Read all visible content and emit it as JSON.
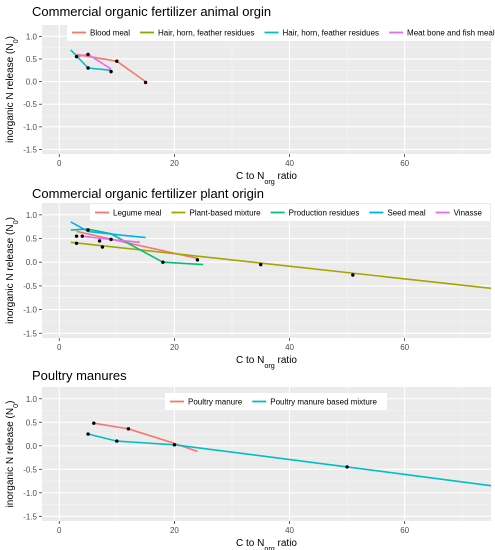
{
  "chart_data": [
    {
      "type": "line",
      "title": "Commercial organic fertilizer animal orgin",
      "xlabel": "C to N_org ratio",
      "ylabel": "inorganic N release (N_0)",
      "xlim": [
        -3,
        75
      ],
      "ylim": [
        -1.6,
        1.25
      ],
      "xticks": [
        0,
        20,
        40,
        60
      ],
      "yticks": [
        -1.5,
        -1.0,
        -0.5,
        0.0,
        0.5,
        1.0
      ],
      "grid": true,
      "legend_position": "top",
      "series": [
        {
          "name": "Blood meal",
          "color": "#F8766D",
          "x": [
            3,
            10,
            15
          ],
          "y": [
            0.6,
            0.45,
            0.0
          ]
        },
        {
          "name": "Hair, horn, feather residues",
          "color": "#7CAE00",
          "x": [],
          "y": []
        },
        {
          "name": "Hair, horn, feather residues",
          "color": "#00BFC4",
          "x": [
            2,
            5,
            9
          ],
          "y": [
            0.7,
            0.3,
            0.25
          ]
        },
        {
          "name": "Meat bone and fish meal",
          "color": "#E76BF3",
          "x": [
            3,
            5,
            9
          ],
          "y": [
            0.55,
            0.6,
            0.28
          ]
        }
      ],
      "points": [
        {
          "x": 3,
          "y": 0.55
        },
        {
          "x": 5,
          "y": 0.6
        },
        {
          "x": 5,
          "y": 0.3
        },
        {
          "x": 9,
          "y": 0.22
        },
        {
          "x": 10,
          "y": 0.45
        },
        {
          "x": 15,
          "y": -0.02
        }
      ]
    },
    {
      "type": "line",
      "title": "Commercial organic fertilizer plant origin",
      "xlabel": "C to N_org ratio",
      "ylabel": "inorganic N release (N_0)",
      "xlim": [
        -3,
        75
      ],
      "ylim": [
        -1.6,
        1.25
      ],
      "xticks": [
        0,
        20,
        40,
        60
      ],
      "yticks": [
        -1.5,
        -1.0,
        -0.5,
        0.0,
        0.5,
        1.0
      ],
      "grid": true,
      "legend_position": "top",
      "series": [
        {
          "name": "Legume meal",
          "color": "#F8766D",
          "x": [
            3,
            24
          ],
          "y": [
            0.65,
            0.08
          ]
        },
        {
          "name": "Plant-based mixture",
          "color": "#A3A500",
          "x": [
            2,
            75
          ],
          "y": [
            0.42,
            -0.55
          ]
        },
        {
          "name": "Production residues",
          "color": "#00BF7D",
          "x": [
            2,
            5,
            9,
            13,
            18,
            25
          ],
          "y": [
            0.68,
            0.7,
            0.6,
            0.33,
            0.0,
            -0.05
          ]
        },
        {
          "name": "Seed meal",
          "color": "#00B0F6",
          "x": [
            2,
            5,
            10,
            15
          ],
          "y": [
            0.85,
            0.65,
            0.58,
            0.52
          ]
        },
        {
          "name": "Vinasse",
          "color": "#E76BF3",
          "x": [
            4,
            9,
            14
          ],
          "y": [
            0.55,
            0.48,
            0.42
          ]
        }
      ],
      "points": [
        {
          "x": 3,
          "y": 0.55
        },
        {
          "x": 4,
          "y": 0.55
        },
        {
          "x": 5,
          "y": 0.68
        },
        {
          "x": 7,
          "y": 0.45
        },
        {
          "x": 7.5,
          "y": 0.32
        },
        {
          "x": 9,
          "y": 0.48
        },
        {
          "x": 3,
          "y": 0.4
        },
        {
          "x": 18,
          "y": 0.0
        },
        {
          "x": 24,
          "y": 0.05
        },
        {
          "x": 35,
          "y": -0.05
        },
        {
          "x": 51,
          "y": -0.27
        }
      ]
    },
    {
      "type": "line",
      "title": "Poultry manures",
      "xlabel": "C to N_org ratio",
      "ylabel": "inorganic N release (N_0)",
      "xlim": [
        -3,
        75
      ],
      "ylim": [
        -1.6,
        1.25
      ],
      "xticks": [
        0,
        20,
        40,
        60
      ],
      "yticks": [
        -1.5,
        -1.0,
        -0.5,
        0.0,
        0.5,
        1.0
      ],
      "grid": true,
      "legend_position": "top",
      "series": [
        {
          "name": "Poultry manure",
          "color": "#F8766D",
          "x": [
            6,
            12,
            20,
            24
          ],
          "y": [
            0.48,
            0.36,
            0.05,
            -0.12
          ]
        },
        {
          "name": "Poultry manure based mixture",
          "color": "#00BFC4",
          "x": [
            5,
            10,
            20,
            50,
            75
          ],
          "y": [
            0.25,
            0.1,
            0.02,
            -0.45,
            -0.85
          ]
        }
      ],
      "points": [
        {
          "x": 6,
          "y": 0.48
        },
        {
          "x": 12,
          "y": 0.36
        },
        {
          "x": 5,
          "y": 0.25
        },
        {
          "x": 10,
          "y": 0.1
        },
        {
          "x": 20,
          "y": 0.02
        },
        {
          "x": 50,
          "y": -0.45
        }
      ]
    }
  ]
}
